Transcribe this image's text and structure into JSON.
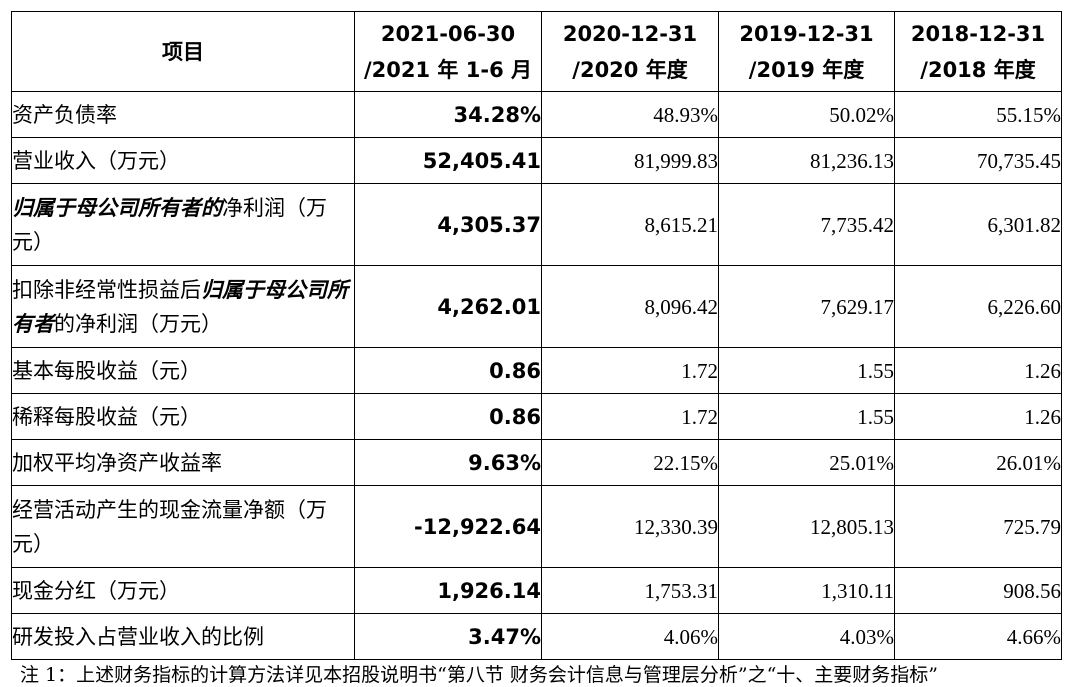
{
  "table": {
    "headers": [
      {
        "line1": "项目",
        "line2": ""
      },
      {
        "line1": "2021-06-30",
        "line2": "/2021 年 1-6 月"
      },
      {
        "line1": "2020-12-31",
        "line2": "/2020 年度"
      },
      {
        "line1": "2019-12-31",
        "line2": "/2019 年度"
      },
      {
        "line1": "2018-12-31",
        "line2": "/2018 年度"
      }
    ],
    "rows": [
      {
        "label": "资产负债率",
        "c2021": "34.28%",
        "c2020": "48.93%",
        "c2019": "50.02%",
        "c2018": "55.15%"
      },
      {
        "label": "营业收入（万元）",
        "c2021": "52,405.41",
        "c2020": "81,999.83",
        "c2019": "81,236.13",
        "c2018": "70,735.45"
      },
      {
        "label_em": "归属于母公司所有者的",
        "label_rest": "净利润（万元）",
        "c2021": "4,305.37",
        "c2020": "8,615.21",
        "c2019": "7,735.42",
        "c2018": "6,301.82"
      },
      {
        "label_pre": "扣除非经常性损益后",
        "label_em": "归属于母公司所有者",
        "label_rest": "的净利润（万元）",
        "c2021": "4,262.01",
        "c2020": "8,096.42",
        "c2019": "7,629.17",
        "c2018": "6,226.60"
      },
      {
        "label": "基本每股收益（元）",
        "c2021": "0.86",
        "c2020": "1.72",
        "c2019": "1.55",
        "c2018": "1.26"
      },
      {
        "label": "稀释每股收益（元）",
        "c2021": "0.86",
        "c2020": "1.72",
        "c2019": "1.55",
        "c2018": "1.26"
      },
      {
        "label": "加权平均净资产收益率",
        "c2021": "9.63%",
        "c2020": "22.15%",
        "c2019": "25.01%",
        "c2018": "26.01%"
      },
      {
        "label": "经营活动产生的现金流量净额（万元）",
        "c2021": "-12,922.64",
        "c2020": "12,330.39",
        "c2019": "12,805.13",
        "c2018": "725.79"
      },
      {
        "label": "现金分红（万元）",
        "c2021": "1,926.14",
        "c2020": "1,753.31",
        "c2019": "1,310.11",
        "c2018": "908.56"
      },
      {
        "label": "研发投入占营业收入的比例",
        "c2021": "3.47%",
        "c2020": "4.06%",
        "c2019": "4.03%",
        "c2018": "4.66%"
      }
    ]
  },
  "footnote": "注 1：上述财务指标的计算方法详见本招股说明书“第八节 财务会计信息与管理层分析”之“十、主要财务指标”"
}
